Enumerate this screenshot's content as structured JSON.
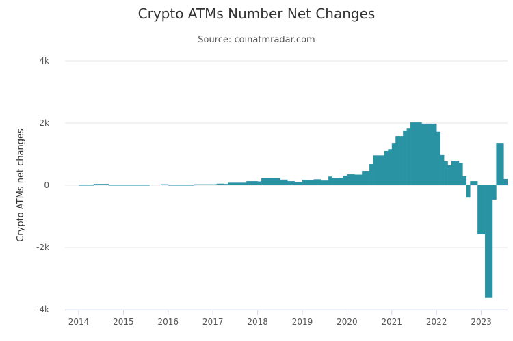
{
  "chart_data": {
    "type": "bar",
    "title": "Crypto ATMs Number Net Changes",
    "subtitle": "Source: coinatmradar.com",
    "xlabel": "",
    "ylabel": "Crypto ATMs net changes",
    "ylim": [
      -4000,
      4000
    ],
    "yticks": [
      {
        "v": 4000,
        "label": "4k"
      },
      {
        "v": 2000,
        "label": "2k"
      },
      {
        "v": 0,
        "label": "0"
      },
      {
        "v": -2000,
        "label": "-2k"
      },
      {
        "v": -4000,
        "label": "-4k"
      }
    ],
    "xticks": [
      "2014",
      "2015",
      "2016",
      "2017",
      "2018",
      "2019",
      "2020",
      "2021",
      "2022",
      "2023"
    ],
    "grid": true,
    "legend": "none",
    "color": "#2a93a3",
    "end_date": "2023-08",
    "bars": [
      [
        "2014-01",
        10
      ],
      [
        "2014-05",
        40
      ],
      [
        "2014-09",
        10
      ],
      [
        "2015-08",
        0
      ],
      [
        "2015-11",
        30
      ],
      [
        "2016-01",
        10
      ],
      [
        "2016-08",
        30
      ],
      [
        "2017-02",
        50
      ],
      [
        "2017-04",
        40
      ],
      [
        "2017-05",
        80
      ],
      [
        "2017-10",
        130
      ],
      [
        "2018-01",
        120
      ],
      [
        "2018-02",
        220
      ],
      [
        "2018-07",
        180
      ],
      [
        "2018-09",
        130
      ],
      [
        "2018-11",
        110
      ],
      [
        "2019-01",
        170
      ],
      [
        "2019-04",
        190
      ],
      [
        "2019-06",
        150
      ],
      [
        "2019-08",
        280
      ],
      [
        "2019-09",
        240
      ],
      [
        "2019-12",
        310
      ],
      [
        "2020-01",
        350
      ],
      [
        "2020-03",
        340
      ],
      [
        "2020-05",
        460
      ],
      [
        "2020-07",
        680
      ],
      [
        "2020-08",
        960
      ],
      [
        "2020-11",
        1100
      ],
      [
        "2020-12",
        1160
      ],
      [
        "2021-01",
        1360
      ],
      [
        "2021-02",
        1580
      ],
      [
        "2021-04",
        1760
      ],
      [
        "2021-05",
        1820
      ],
      [
        "2021-06",
        2020
      ],
      [
        "2021-09",
        1980
      ],
      [
        "2022-01",
        1720
      ],
      [
        "2022-02",
        970
      ],
      [
        "2022-03",
        770
      ],
      [
        "2022-04",
        640
      ],
      [
        "2022-05",
        790
      ],
      [
        "2022-07",
        720
      ],
      [
        "2022-08",
        290
      ],
      [
        "2022-09",
        -400
      ],
      [
        "2022-10",
        130
      ],
      [
        "2022-12",
        -1580
      ],
      [
        "2023-02",
        -3620
      ],
      [
        "2023-04",
        -460
      ],
      [
        "2023-05",
        1360
      ],
      [
        "2023-07",
        200
      ]
    ]
  }
}
